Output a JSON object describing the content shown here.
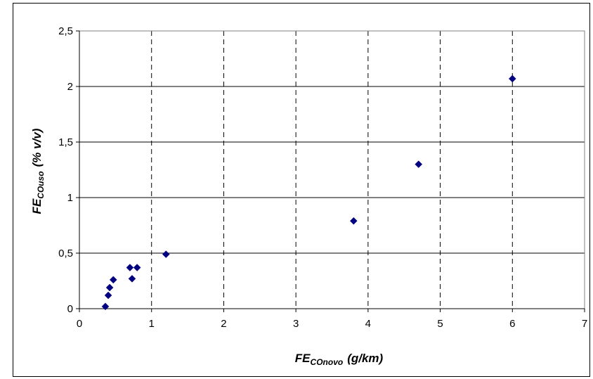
{
  "chart_data": {
    "type": "scatter",
    "title": "",
    "xlabel": {
      "main": "FE",
      "sub": "COnovo",
      "unit": "(g/km)"
    },
    "ylabel": {
      "main": "FE",
      "sub": "COuso",
      "unit": "(% v/v)"
    },
    "xlim": [
      0,
      7
    ],
    "ylim": [
      0,
      2.5
    ],
    "x_ticks": [
      "0",
      "1",
      "2",
      "3",
      "4",
      "5",
      "6",
      "7"
    ],
    "y_ticks": [
      "0",
      "0,5",
      "1",
      "1,5",
      "2",
      "2,5"
    ],
    "grid": {
      "horizontal": "solid",
      "vertical": "dashed"
    },
    "legend": "none",
    "marker": "diamond",
    "marker_color": "#000080",
    "series": [
      {
        "points": [
          {
            "x": 0.36,
            "y": 0.02
          },
          {
            "x": 0.4,
            "y": 0.12
          },
          {
            "x": 0.42,
            "y": 0.19
          },
          {
            "x": 0.47,
            "y": 0.26
          },
          {
            "x": 0.7,
            "y": 0.37
          },
          {
            "x": 0.73,
            "y": 0.27
          },
          {
            "x": 0.8,
            "y": 0.37
          },
          {
            "x": 1.2,
            "y": 0.49
          },
          {
            "x": 3.8,
            "y": 0.79
          },
          {
            "x": 4.7,
            "y": 1.3
          },
          {
            "x": 6.0,
            "y": 2.07
          }
        ]
      }
    ]
  }
}
